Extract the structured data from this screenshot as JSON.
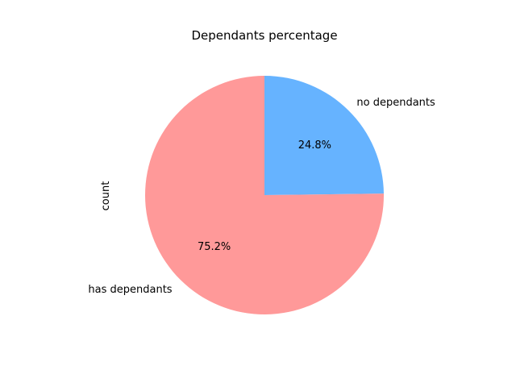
{
  "chart_data": {
    "type": "pie",
    "title": "Dependants percentage",
    "ylabel": "count",
    "slices": [
      {
        "label": "no dependants",
        "value": 24.8,
        "pct_label": "24.8%",
        "color": "#66b3ff"
      },
      {
        "label": "has dependants",
        "value": 75.2,
        "pct_label": "75.2%",
        "color": "#ff9999"
      }
    ],
    "start_angle_deg": 90,
    "direction": "clockwise"
  }
}
